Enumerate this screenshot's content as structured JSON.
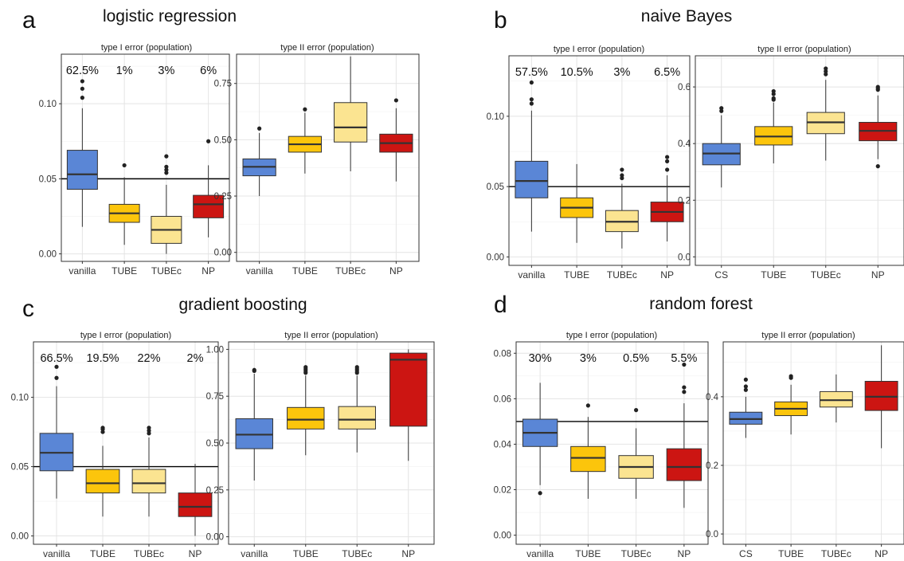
{
  "chart_data": [
    {
      "letter": "a",
      "title": "logistic regression",
      "type": "box",
      "colors": [
        "#5A86D6",
        "#FCC50C",
        "#FBE491",
        "#CC1512"
      ],
      "left": {
        "title": "type I error (population)",
        "categories": [
          "vanilla",
          "TUBE",
          "TUBEc",
          "NP"
        ],
        "ylim": [
          -0.005,
          0.133
        ],
        "yticks": [
          0,
          0.05,
          0.1
        ],
        "ytick_labels": [
          "0.00",
          "0.05",
          "0.10"
        ],
        "hline": 0.05,
        "violation_rates": [
          "62.5%",
          "1%",
          "3%",
          "6%"
        ],
        "boxes": [
          {
            "q1": 0.043,
            "median": 0.053,
            "q3": 0.069,
            "whisker_low": 0.018,
            "whisker_high": 0.097,
            "outliers": [
              0.104,
              0.11,
              0.115
            ]
          },
          {
            "q1": 0.021,
            "median": 0.027,
            "q3": 0.033,
            "whisker_low": 0.006,
            "whisker_high": 0.051,
            "outliers": [
              0.059
            ]
          },
          {
            "q1": 0.007,
            "median": 0.016,
            "q3": 0.025,
            "whisker_low": 0.0,
            "whisker_high": 0.046,
            "outliers": [
              0.054,
              0.056,
              0.058,
              0.065
            ]
          },
          {
            "q1": 0.024,
            "median": 0.033,
            "q3": 0.039,
            "whisker_low": 0.011,
            "whisker_high": 0.059,
            "outliers": [
              0.075
            ]
          }
        ]
      },
      "right": {
        "title": "type II error (population)",
        "categories": [
          "vanilla",
          "TUBE",
          "TUBEc",
          "NP"
        ],
        "ylim": [
          -0.04,
          0.88
        ],
        "yticks": [
          0,
          0.25,
          0.5,
          0.75
        ],
        "ytick_labels": [
          "0.00",
          "0.25",
          "0.50",
          "0.75"
        ],
        "boxes": [
          {
            "q1": 0.34,
            "median": 0.38,
            "q3": 0.415,
            "whisker_low": 0.25,
            "whisker_high": 0.53,
            "outliers": [
              0.55
            ]
          },
          {
            "q1": 0.445,
            "median": 0.48,
            "q3": 0.515,
            "whisker_low": 0.35,
            "whisker_high": 0.62,
            "outliers": [
              0.635
            ]
          },
          {
            "q1": 0.49,
            "median": 0.555,
            "q3": 0.665,
            "whisker_low": 0.36,
            "whisker_high": 0.87,
            "outliers": []
          },
          {
            "q1": 0.445,
            "median": 0.485,
            "q3": 0.525,
            "whisker_low": 0.315,
            "whisker_high": 0.64,
            "outliers": [
              0.675
            ]
          }
        ]
      }
    },
    {
      "letter": "b",
      "title": "naive Bayes",
      "type": "box",
      "colors": [
        "#5A86D6",
        "#FCC50C",
        "#FBE491",
        "#CC1512"
      ],
      "left": {
        "title": "type I error (population)",
        "categories": [
          "vanilla",
          "TUBE",
          "TUBEc",
          "NP"
        ],
        "ylim": [
          -0.006,
          0.143
        ],
        "yticks": [
          0,
          0.05,
          0.1
        ],
        "ytick_labels": [
          "0.00",
          "0.05",
          "0.10"
        ],
        "hline": 0.05,
        "violation_rates": [
          "57.5%",
          "10.5%",
          "3%",
          "6.5%"
        ],
        "boxes": [
          {
            "q1": 0.042,
            "median": 0.054,
            "q3": 0.068,
            "whisker_low": 0.018,
            "whisker_high": 0.104,
            "outliers": [
              0.109,
              0.112,
              0.124
            ]
          },
          {
            "q1": 0.028,
            "median": 0.035,
            "q3": 0.042,
            "whisker_low": 0.01,
            "whisker_high": 0.066,
            "outliers": []
          },
          {
            "q1": 0.018,
            "median": 0.025,
            "q3": 0.033,
            "whisker_low": 0.006,
            "whisker_high": 0.052,
            "outliers": [
              0.056,
              0.058,
              0.062
            ]
          },
          {
            "q1": 0.025,
            "median": 0.032,
            "q3": 0.039,
            "whisker_low": 0.011,
            "whisker_high": 0.058,
            "outliers": [
              0.062,
              0.068,
              0.071
            ]
          }
        ]
      },
      "right": {
        "title": "type II error (population)",
        "categories": [
          "CS",
          "TUBE",
          "TUBEc",
          "NP"
        ],
        "ylim": [
          -0.03,
          0.71
        ],
        "yticks": [
          0,
          0.2,
          0.4,
          0.6
        ],
        "ytick_labels": [
          "0.0",
          "0.2",
          "0.4",
          "0.6"
        ],
        "boxes": [
          {
            "q1": 0.325,
            "median": 0.365,
            "q3": 0.4,
            "whisker_low": 0.245,
            "whisker_high": 0.5,
            "outliers": [
              0.515,
              0.525
            ]
          },
          {
            "q1": 0.395,
            "median": 0.425,
            "q3": 0.46,
            "whisker_low": 0.33,
            "whisker_high": 0.545,
            "outliers": [
              0.555,
              0.56,
              0.575,
              0.585
            ]
          },
          {
            "q1": 0.435,
            "median": 0.475,
            "q3": 0.51,
            "whisker_low": 0.34,
            "whisker_high": 0.625,
            "outliers": [
              0.645,
              0.655,
              0.665
            ]
          },
          {
            "q1": 0.41,
            "median": 0.445,
            "q3": 0.475,
            "whisker_low": 0.345,
            "whisker_high": 0.57,
            "outliers": [
              0.32,
              0.59,
              0.595,
              0.6
            ]
          }
        ]
      }
    },
    {
      "letter": "c",
      "title": "gradient boosting",
      "type": "box",
      "colors": [
        "#5A86D6",
        "#FCC50C",
        "#FBE491",
        "#CC1512"
      ],
      "left": {
        "title": "type I error (population)",
        "categories": [
          "vanilla",
          "TUBE",
          "TUBEc",
          "NP"
        ],
        "ylim": [
          -0.006,
          0.14
        ],
        "yticks": [
          0,
          0.05,
          0.1
        ],
        "ytick_labels": [
          "0.00",
          "0.05",
          "0.10"
        ],
        "hline": 0.05,
        "violation_rates": [
          "66.5%",
          "19.5%",
          "22%",
          "2%"
        ],
        "boxes": [
          {
            "q1": 0.047,
            "median": 0.06,
            "q3": 0.074,
            "whisker_low": 0.027,
            "whisker_high": 0.108,
            "outliers": [
              0.114,
              0.122
            ]
          },
          {
            "q1": 0.031,
            "median": 0.038,
            "q3": 0.048,
            "whisker_low": 0.014,
            "whisker_high": 0.065,
            "outliers": [
              0.075,
              0.077,
              0.078
            ]
          },
          {
            "q1": 0.031,
            "median": 0.038,
            "q3": 0.048,
            "whisker_low": 0.014,
            "whisker_high": 0.071,
            "outliers": [
              0.074,
              0.076,
              0.078
            ]
          },
          {
            "q1": 0.014,
            "median": 0.021,
            "q3": 0.031,
            "whisker_low": 0.0,
            "whisker_high": 0.052,
            "outliers": []
          }
        ]
      },
      "right": {
        "title": "type II error (population)",
        "categories": [
          "vanilla",
          "TUBE",
          "TUBEc",
          "NP"
        ],
        "ylim": [
          -0.04,
          1.04
        ],
        "yticks": [
          0,
          0.25,
          0.5,
          0.75,
          1.0
        ],
        "ytick_labels": [
          "0.00",
          "0.25",
          "0.50",
          "0.75",
          "1.00"
        ],
        "boxes": [
          {
            "q1": 0.47,
            "median": 0.545,
            "q3": 0.63,
            "whisker_low": 0.3,
            "whisker_high": 0.87,
            "outliers": [
              0.885,
              0.89
            ]
          },
          {
            "q1": 0.575,
            "median": 0.625,
            "q3": 0.69,
            "whisker_low": 0.435,
            "whisker_high": 0.86,
            "outliers": [
              0.875,
              0.885,
              0.895,
              0.905
            ]
          },
          {
            "q1": 0.575,
            "median": 0.625,
            "q3": 0.695,
            "whisker_low": 0.45,
            "whisker_high": 0.86,
            "outliers": [
              0.875,
              0.885,
              0.895,
              0.905
            ]
          },
          {
            "q1": 0.59,
            "median": 0.945,
            "q3": 0.98,
            "whisker_low": 0.405,
            "whisker_high": 1.0,
            "outliers": []
          }
        ]
      }
    },
    {
      "letter": "d",
      "title": "random forest",
      "type": "box",
      "colors": [
        "#5A86D6",
        "#FCC50C",
        "#FBE491",
        "#CC1512"
      ],
      "left": {
        "title": "type I error (population)",
        "categories": [
          "vanilla",
          "TUBE",
          "TUBEc",
          "NP"
        ],
        "ylim": [
          -0.004,
          0.085
        ],
        "yticks": [
          0,
          0.02,
          0.04,
          0.06,
          0.08
        ],
        "ytick_labels": [
          "0.00",
          "0.02",
          "0.04",
          "0.06",
          "0.08"
        ],
        "hline": 0.05,
        "violation_rates": [
          "30%",
          "3%",
          "0.5%",
          "5.5%"
        ],
        "boxes": [
          {
            "q1": 0.039,
            "median": 0.045,
            "q3": 0.051,
            "whisker_low": 0.022,
            "whisker_high": 0.067,
            "outliers": [
              0.0185
            ]
          },
          {
            "q1": 0.028,
            "median": 0.034,
            "q3": 0.039,
            "whisker_low": 0.016,
            "whisker_high": 0.052,
            "outliers": [
              0.057
            ]
          },
          {
            "q1": 0.025,
            "median": 0.03,
            "q3": 0.035,
            "whisker_low": 0.016,
            "whisker_high": 0.047,
            "outliers": [
              0.055
            ]
          },
          {
            "q1": 0.024,
            "median": 0.03,
            "q3": 0.038,
            "whisker_low": 0.012,
            "whisker_high": 0.058,
            "outliers": [
              0.063,
              0.065,
              0.075
            ]
          }
        ]
      },
      "right": {
        "title": "type II error (population)",
        "categories": [
          "CS",
          "TUBE",
          "TUBEc",
          "NP"
        ],
        "ylim": [
          -0.03,
          0.56
        ],
        "yticks": [
          0,
          0.2,
          0.4
        ],
        "ytick_labels": [
          "0.0",
          "0.2",
          "0.4"
        ],
        "boxes": [
          {
            "q1": 0.32,
            "median": 0.335,
            "q3": 0.355,
            "whisker_low": 0.28,
            "whisker_high": 0.4,
            "outliers": [
              0.42,
              0.43,
              0.45
            ]
          },
          {
            "q1": 0.345,
            "median": 0.365,
            "q3": 0.385,
            "whisker_low": 0.29,
            "whisker_high": 0.435,
            "outliers": [
              0.455,
              0.46
            ]
          },
          {
            "q1": 0.37,
            "median": 0.39,
            "q3": 0.415,
            "whisker_low": 0.325,
            "whisker_high": 0.465,
            "outliers": []
          },
          {
            "q1": 0.36,
            "median": 0.4,
            "q3": 0.445,
            "whisker_low": 0.25,
            "whisker_high": 0.55,
            "outliers": []
          }
        ]
      }
    }
  ]
}
